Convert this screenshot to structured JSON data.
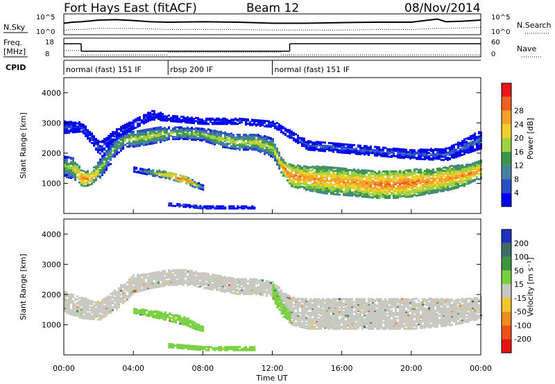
{
  "header": {
    "station": "Fort Hays East (fitACF)",
    "beam": "Beam 12",
    "date": "08/Nov/2014"
  },
  "chart_data": [
    {
      "type": "line",
      "panel": "sky-noise",
      "ylabel": "N.Sky",
      "ylabel_right": "N.Search",
      "yticks": [
        "10^5",
        "10^0"
      ],
      "yticks_right": [
        "10^5",
        "10^0"
      ],
      "x_hours": [
        0,
        0.5,
        1,
        2,
        3,
        4,
        5,
        6,
        8,
        10,
        12,
        14,
        16,
        18,
        20,
        21.5,
        22,
        23,
        24
      ],
      "sky": [
        0.55,
        0.6,
        0.62,
        0.7,
        0.72,
        0.68,
        0.62,
        0.6,
        0.62,
        0.6,
        0.55,
        0.55,
        0.58,
        0.6,
        0.6,
        0.75,
        0.62,
        0.65,
        0.7
      ],
      "search": [
        0.2,
        0.25,
        0.25,
        0.3,
        0.3,
        0.3,
        0.28,
        0.25,
        0.25,
        0.25,
        0.22,
        0.22,
        0.22,
        0.25,
        0.25,
        0.3,
        0.3,
        0.32,
        0.35
      ]
    },
    {
      "type": "line",
      "panel": "frequency",
      "ylabel": "Freq.",
      "ylabel_unit": "[MHz]",
      "ylabel_right": "Nave",
      "yticks": [
        "18",
        "8"
      ],
      "yticks_right": [
        "60",
        "0"
      ],
      "freq_steps": [
        {
          "x0": 0,
          "x1": 1,
          "value": 15
        },
        {
          "x0": 1,
          "x1": 13,
          "value": 11
        },
        {
          "x0": 13,
          "x1": 24,
          "value": 15
        }
      ],
      "nave_steps": [
        {
          "x0": 0,
          "x1": 1,
          "value": 20
        },
        {
          "x0": 1,
          "x1": 6,
          "value": 6
        },
        {
          "x0": 6,
          "x1": 12.5,
          "value": 15
        },
        {
          "x0": 12.5,
          "x1": 24,
          "value": 6
        }
      ]
    },
    {
      "type": "table",
      "panel": "cpid",
      "label": "CPID",
      "segments": [
        {
          "x0": 0,
          "x1": 6,
          "label": "normal (fast) 151 IF"
        },
        {
          "x0": 6,
          "x1": 12,
          "label": "rbsp 200 IF"
        },
        {
          "x0": 12,
          "x1": 24,
          "label": "normal (fast) 151 IF"
        }
      ]
    },
    {
      "type": "heatmap",
      "panel": "power",
      "ylabel": "Slant Range [km]",
      "ylim": [
        0,
        4500
      ],
      "yticks": [
        1000,
        2000,
        3000,
        4000
      ],
      "colorbar_label": "Power [dB]",
      "colorbar_ticks": [
        4,
        8,
        12,
        16,
        20,
        24,
        28
      ],
      "colorbar_colors": [
        "#0000f0",
        "#2a50c8",
        "#4682a0",
        "#3c9650",
        "#a0d040",
        "#f0d028",
        "#f5a028",
        "#f06020",
        "#e81818"
      ],
      "bands": [
        {
          "x_hours": [
            0,
            0.5,
            1,
            1.5,
            2,
            2.5,
            3,
            3.5,
            4,
            4.5,
            5,
            5.5,
            6,
            7,
            8,
            9,
            10,
            11,
            11.5,
            12,
            12.5,
            13,
            14,
            15,
            16,
            17,
            18,
            19,
            20,
            21,
            22,
            23,
            23.5,
            24
          ],
          "y_center": [
            1600,
            1550,
            1200,
            1200,
            1500,
            1900,
            2300,
            2500,
            2500,
            2550,
            2600,
            2650,
            2700,
            2700,
            2650,
            2500,
            2400,
            2400,
            2300,
            2200,
            1600,
            1300,
            1200,
            1150,
            1100,
            1050,
            1000,
            1000,
            1050,
            1100,
            1200,
            1300,
            1400,
            1500
          ],
          "y_halfwidth": [
            350,
            350,
            250,
            250,
            300,
            350,
            300,
            250,
            250,
            250,
            250,
            250,
            200,
            200,
            200,
            250,
            250,
            250,
            300,
            300,
            250,
            350,
            400,
            450,
            450,
            450,
            450,
            450,
            450,
            400,
            400,
            350,
            300,
            300
          ],
          "power_db": [
            16,
            18,
            26,
            24,
            18,
            14,
            14,
            16,
            18,
            18,
            18,
            18,
            16,
            16,
            16,
            18,
            18,
            18,
            18,
            18,
            24,
            26,
            24,
            24,
            24,
            24,
            26,
            26,
            26,
            24,
            24,
            24,
            24,
            24
          ]
        },
        {
          "x_hours": [
            4,
            5,
            6,
            7,
            7.5,
            8
          ],
          "y_center": [
            1500,
            1400,
            1300,
            1150,
            1000,
            900
          ],
          "y_halfwidth": [
            80,
            100,
            120,
            120,
            100,
            80
          ],
          "power_db": [
            8,
            16,
            24,
            28,
            20,
            12
          ]
        },
        {
          "x_hours": [
            0,
            1,
            2,
            3,
            4,
            5,
            6,
            8,
            10,
            12,
            14,
            16,
            18,
            20,
            22,
            24
          ],
          "y_center": [
            2900,
            2900,
            2200,
            2700,
            3000,
            3300,
            3200,
            3100,
            3100,
            3000,
            2300,
            2200,
            2100,
            2000,
            2000,
            2500
          ],
          "y_halfwidth": [
            200,
            150,
            200,
            150,
            150,
            150,
            100,
            100,
            100,
            100,
            150,
            150,
            150,
            150,
            200,
            300
          ],
          "power_db": [
            6,
            6,
            6,
            6,
            6,
            4,
            4,
            4,
            4,
            6,
            8,
            8,
            8,
            8,
            8,
            8
          ]
        },
        {
          "x_hours": [
            6,
            7,
            8,
            9,
            10,
            11
          ],
          "y_center": [
            350,
            300,
            250,
            250,
            250,
            250
          ],
          "y_halfwidth": [
            50,
            50,
            50,
            50,
            50,
            50
          ],
          "power_db": [
            8,
            8,
            8,
            6,
            6,
            6
          ]
        }
      ]
    },
    {
      "type": "heatmap",
      "panel": "velocity",
      "xlabel": "Time UT",
      "ylabel": "Slant Range [km]",
      "ylim": [
        0,
        4500
      ],
      "yticks": [
        1000,
        2000,
        3000,
        4000
      ],
      "xticks": [
        "00:00",
        "04:00",
        "08:00",
        "12:00",
        "16:00",
        "20:00",
        "00:00"
      ],
      "colorbar_label": "Velocity [m s⁻¹]",
      "colorbar_ticks": [
        200,
        100,
        50,
        15,
        -15,
        -50,
        -100,
        -200
      ],
      "colorbar_colors": [
        "#2030c0",
        "#3c6e64",
        "#3c9640",
        "#78d040",
        "#c8c8c0",
        "#f0c828",
        "#f08c20",
        "#f05018",
        "#e81010"
      ],
      "bands": [
        {
          "x_hours": [
            0,
            1,
            2,
            3,
            4,
            5,
            6,
            7,
            8,
            9,
            10,
            11,
            12,
            13,
            14,
            16,
            18,
            20,
            22,
            23,
            24
          ],
          "y_center": [
            1800,
            1600,
            1500,
            1900,
            2400,
            2500,
            2600,
            2600,
            2500,
            2400,
            2300,
            2300,
            2200,
            1500,
            1400,
            1400,
            1400,
            1400,
            1450,
            1500,
            1600
          ],
          "y_halfwidth": [
            350,
            350,
            300,
            350,
            300,
            250,
            250,
            250,
            250,
            250,
            250,
            250,
            250,
            450,
            500,
            500,
            500,
            500,
            450,
            400,
            350
          ],
          "velocity": [
            0,
            0,
            0,
            0,
            0,
            0,
            0,
            0,
            0,
            0,
            0,
            0,
            0,
            0,
            0,
            0,
            0,
            0,
            0,
            0,
            0
          ]
        },
        {
          "x_hours": [
            4,
            5,
            6,
            7,
            7.5,
            8
          ],
          "y_center": [
            1500,
            1400,
            1300,
            1150,
            1000,
            900
          ],
          "y_halfwidth": [
            80,
            100,
            130,
            130,
            110,
            80
          ],
          "velocity": [
            30,
            30,
            30,
            30,
            30,
            30
          ]
        },
        {
          "x_hours": [
            12,
            12.3,
            12.6,
            13
          ],
          "y_center": [
            2100,
            1800,
            1500,
            1300
          ],
          "y_halfwidth": [
            250,
            250,
            200,
            150
          ],
          "velocity": [
            30,
            30,
            30,
            30
          ]
        },
        {
          "x_hours": [
            6,
            7,
            8,
            9,
            10,
            11
          ],
          "y_center": [
            350,
            300,
            250,
            250,
            250,
            250
          ],
          "y_halfwidth": [
            60,
            60,
            60,
            60,
            60,
            60
          ],
          "velocity": [
            30,
            30,
            30,
            30,
            30,
            30
          ]
        }
      ]
    }
  ]
}
